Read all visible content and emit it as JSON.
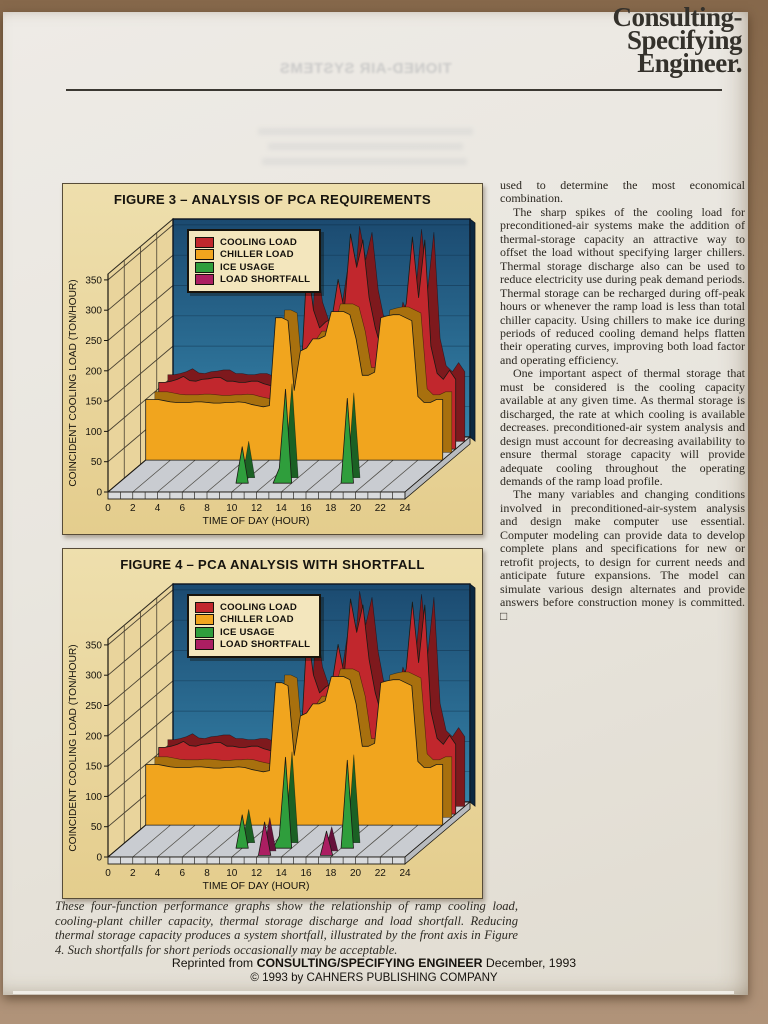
{
  "header": {
    "logo_lines": [
      "Consulting-",
      "Specifying",
      "Engineer."
    ],
    "show_through_text": "TIONED-AIR SYSTEMS"
  },
  "article": {
    "paragraphs": [
      "used to determine the most economical combination.",
      "The sharp spikes of the cooling load for preconditioned-air systems make the addition of thermal-storage capacity an attractive way to offset the load without specifying larger chillers. Thermal storage discharge also can be used to reduce electricity use during peak demand periods. Thermal storage can be recharged during off-peak hours or whenever the ramp load is less than total chiller capacity. Using chillers to make ice during periods of reduced cooling demand helps flatten their operating curves, improving both load factor and operating efficiency.",
      "One important aspect of thermal storage that must be considered is the cooling capacity available at any given time. As thermal storage is discharged, the rate at which cooling is available decreases. preconditioned-air system analysis and design must account for decreasing availability to ensure thermal storage capacity will provide adequate cooling throughout the operating demands of the ramp load profile.",
      "The many variables and changing conditions involved in preconditioned-air-system analysis and design make computer use essential. Computer modeling can provide data to develop complete plans and specifications for new or retrofit projects, to design for current needs and anticipate future expansions. The model can simulate various design alternates and provide answers before construction money is committed. □"
    ]
  },
  "caption": "These four-function performance graphs show the relationship of ramp cooling load, cooling-plant chiller capacity, thermal storage discharge and load shortfall. Reducing thermal storage capacity produces a system shortfall, illustrated by the front axis in Figure 4. Such shortfalls for short periods occasionally may be acceptable.",
  "footer": {
    "reprint_prefix": "Reprinted from ",
    "reprint_bold": "CONSULTING/SPECIFYING ENGINEER",
    "reprint_suffix": " December, 1993",
    "copyright": "©  1993 by CAHNERS PUBLISHING COMPANY"
  },
  "chart_data": [
    {
      "type": "area",
      "projection": "3d-ribbon",
      "title_prefix": "FIGURE 3 – ",
      "title": "ANALYSIS OF PCA REQUIREMENTS",
      "xlabel": "TIME OF DAY (HOUR)",
      "ylabel": "COINCIDENT COOLING LOAD (TON/HOUR)",
      "x_ticks": [
        0,
        2,
        4,
        6,
        8,
        10,
        12,
        14,
        16,
        18,
        20,
        22,
        24
      ],
      "y_ticks": [
        0,
        50,
        100,
        150,
        200,
        250,
        300,
        350
      ],
      "ylim": [
        0,
        350
      ],
      "x_step_hours": 0.5,
      "legend_position": "top-left",
      "colors": {
        "wall_top": "#1b4a70",
        "wall_bottom": "#3583a9",
        "panel": "#e9d49c",
        "floor": "#c9ccd1",
        "wall_edge": "#0c2840"
      },
      "series": [
        {
          "name": "COOLING LOAD",
          "color": "#c1272d",
          "dark": "#7e191d",
          "depth": 0.78,
          "thick": 0.14,
          "values": [
            110,
            110,
            112,
            115,
            120,
            113,
            112,
            115,
            116,
            118,
            118,
            112,
            112,
            110,
            110,
            112,
            112,
            108,
            105,
            105,
            120,
            125,
            160,
            120,
            310,
            230,
            200,
            210,
            215,
            280,
            230,
            355,
            300,
            345,
            250,
            200,
            165,
            170,
            230,
            205,
            240,
            350,
            250,
            345,
            170,
            125,
            115,
            130,
            115
          ]
        },
        {
          "name": "CHILLER LOAD",
          "color": "#f1a51e",
          "dark": "#a8700e",
          "depth": 0.58,
          "thick": 0.14,
          "values": [
            100,
            100,
            100,
            98,
            96,
            95,
            95,
            95,
            96,
            96,
            95,
            94,
            94,
            95,
            95,
            96,
            95,
            92,
            90,
            88,
            90,
            235,
            235,
            230,
            115,
            180,
            185,
            200,
            200,
            205,
            245,
            245,
            245,
            240,
            200,
            140,
            140,
            145,
            235,
            238,
            240,
            240,
            235,
            230,
            105,
            95,
            95,
            100,
            100
          ]
        },
        {
          "name": "ICE USAGE",
          "color": "#2f9e3c",
          "dark": "#1b6124",
          "depth": 0.16,
          "thick": 0.1,
          "values": [
            0,
            0,
            0,
            0,
            0,
            0,
            0,
            0,
            0,
            0,
            0,
            0,
            0,
            0,
            0,
            0,
            0,
            0,
            0,
            0,
            60,
            0,
            0,
            0,
            0,
            0,
            25,
            155,
            0,
            0,
            0,
            0,
            0,
            0,
            0,
            0,
            0,
            140,
            0,
            0,
            0,
            0,
            0,
            0,
            0,
            0,
            0,
            0,
            0
          ]
        },
        {
          "name": "LOAD SHORTFALL",
          "color": "#ab1e62",
          "dark": "#65113a",
          "depth": 0.03,
          "thick": 0.08,
          "values": [
            0,
            0,
            0,
            0,
            0,
            0,
            0,
            0,
            0,
            0,
            0,
            0,
            0,
            0,
            0,
            0,
            0,
            0,
            0,
            0,
            0,
            0,
            0,
            0,
            0,
            0,
            0,
            0,
            0,
            0,
            0,
            0,
            0,
            0,
            0,
            0,
            0,
            0,
            0,
            0,
            0,
            0,
            0,
            0,
            0,
            0,
            0,
            0,
            0
          ]
        }
      ]
    },
    {
      "type": "area",
      "projection": "3d-ribbon",
      "title_prefix": "FIGURE 4 – ",
      "title": "PCA ANALYSIS WITH SHORTFALL",
      "xlabel": "TIME OF DAY (HOUR)",
      "ylabel": "COINCIDENT COOLING LOAD (TON/HOUR)",
      "x_ticks": [
        0,
        2,
        4,
        6,
        8,
        10,
        12,
        14,
        16,
        18,
        20,
        22,
        24
      ],
      "y_ticks": [
        0,
        50,
        100,
        150,
        200,
        250,
        300,
        350
      ],
      "ylim": [
        0,
        350
      ],
      "x_step_hours": 0.5,
      "legend_position": "top-left",
      "colors": {
        "wall_top": "#1b4a70",
        "wall_bottom": "#3583a9",
        "panel": "#e9d49c",
        "floor": "#c9ccd1",
        "wall_edge": "#0c2840"
      },
      "series": [
        {
          "name": "COOLING LOAD",
          "color": "#c1272d",
          "dark": "#7e191d",
          "depth": 0.78,
          "thick": 0.14,
          "values": [
            110,
            110,
            112,
            115,
            120,
            113,
            112,
            115,
            116,
            118,
            118,
            112,
            112,
            110,
            110,
            112,
            112,
            108,
            105,
            105,
            120,
            125,
            160,
            120,
            305,
            230,
            200,
            210,
            215,
            280,
            230,
            355,
            300,
            345,
            255,
            200,
            165,
            170,
            230,
            205,
            240,
            350,
            250,
            345,
            170,
            125,
            115,
            130,
            115
          ]
        },
        {
          "name": "CHILLER LOAD",
          "color": "#f1a51e",
          "dark": "#a8700e",
          "depth": 0.58,
          "thick": 0.14,
          "values": [
            100,
            100,
            100,
            98,
            96,
            95,
            95,
            95,
            96,
            96,
            95,
            94,
            94,
            95,
            95,
            96,
            95,
            92,
            90,
            88,
            90,
            235,
            235,
            230,
            115,
            180,
            185,
            200,
            200,
            205,
            245,
            245,
            245,
            240,
            200,
            130,
            130,
            135,
            235,
            238,
            240,
            240,
            235,
            230,
            105,
            95,
            95,
            100,
            100
          ]
        },
        {
          "name": "ICE USAGE",
          "color": "#2f9e3c",
          "dark": "#1b6124",
          "depth": 0.16,
          "thick": 0.1,
          "values": [
            0,
            0,
            0,
            0,
            0,
            0,
            0,
            0,
            0,
            0,
            0,
            0,
            0,
            0,
            0,
            0,
            0,
            0,
            0,
            0,
            55,
            0,
            0,
            0,
            0,
            0,
            20,
            150,
            0,
            0,
            0,
            0,
            0,
            0,
            0,
            0,
            0,
            145,
            0,
            0,
            0,
            0,
            0,
            0,
            0,
            0,
            0,
            0,
            0
          ]
        },
        {
          "name": "LOAD SHORTFALL",
          "color": "#ab1e62",
          "dark": "#65113a",
          "depth": 0.03,
          "thick": 0.08,
          "values": [
            0,
            0,
            0,
            0,
            0,
            0,
            0,
            0,
            0,
            0,
            0,
            0,
            0,
            0,
            0,
            0,
            0,
            0,
            0,
            0,
            0,
            0,
            0,
            0,
            0,
            55,
            0,
            0,
            0,
            0,
            0,
            0,
            0,
            0,
            0,
            40,
            0,
            0,
            0,
            0,
            0,
            0,
            0,
            0,
            0,
            0,
            0,
            0,
            0
          ]
        }
      ]
    }
  ]
}
